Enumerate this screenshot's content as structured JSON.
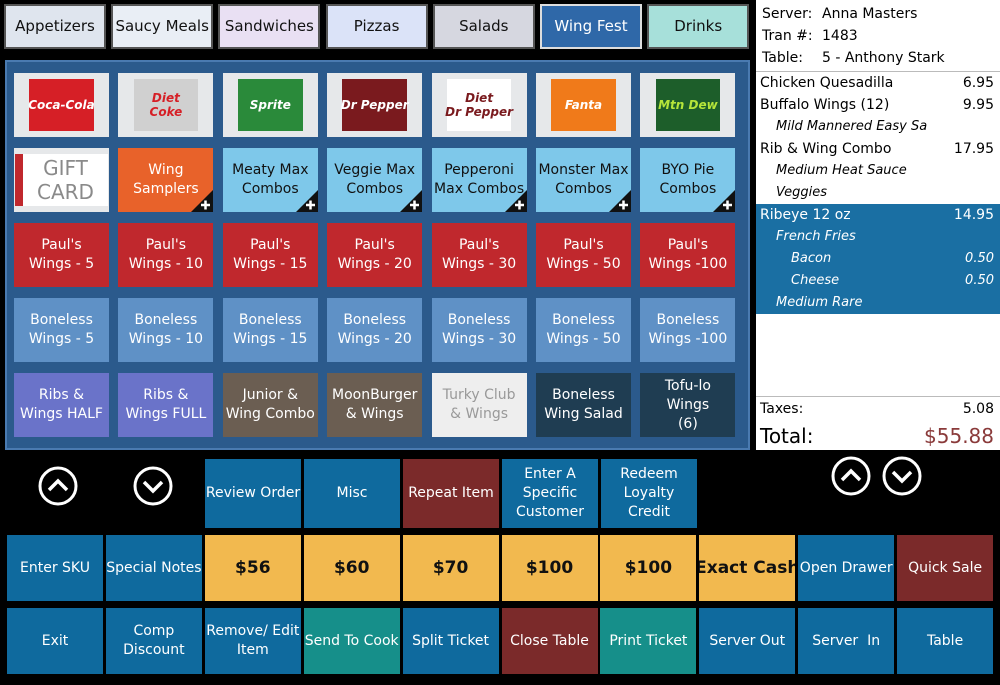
{
  "tabs": [
    {
      "label": "Appetizers",
      "color": "#dfe5ee"
    },
    {
      "label": "Saucy Meals",
      "color": "#e9eef5"
    },
    {
      "label": "Sandwiches",
      "color": "#e9e0f3"
    },
    {
      "label": "Pizzas",
      "color": "#dbe3f8"
    },
    {
      "label": "Salads",
      "color": "#d6d7e0"
    },
    {
      "label": "Wing Fest",
      "color": "#2f68a8"
    },
    {
      "label": "Drinks",
      "color": "#a7e0da"
    }
  ],
  "menu": [
    [
      {
        "logo": [
          "Coca-Cola"
        ],
        "color": "#d61f26",
        "text_color": "#ffffff"
      },
      {
        "logo": [
          "Diet",
          "Coke"
        ],
        "color": "#d0d0d0",
        "text_color": "#d61f26"
      },
      {
        "logo": [
          "Sprite"
        ],
        "color": "#2a8a3a",
        "text_color": "#ffffff"
      },
      {
        "logo": [
          "Dr Pepper"
        ],
        "color": "#7a1a1e",
        "text_color": "#ffffff"
      },
      {
        "logo": [
          "Diet",
          "Dr Pepper"
        ],
        "color": "#ffffff",
        "text_color": "#7a1a1e"
      },
      {
        "logo": [
          "Fanta"
        ],
        "color": "#f07a1a",
        "text_color": "#ffffff"
      },
      {
        "logo": [
          "Mtn Dew"
        ],
        "color": "#1d5e2a",
        "text_color": "#b6e63a"
      }
    ],
    [
      {
        "logo": [
          "GIFT",
          "CARD"
        ],
        "color": "#ffffff",
        "text_color": "#8a8a8a"
      },
      {
        "lines": [
          "Wing",
          "Samplers"
        ],
        "color": "#e8622a",
        "more": true
      },
      {
        "lines": [
          "Meaty Max",
          "Combos"
        ],
        "color": "#7ec8ea",
        "more": true
      },
      {
        "lines": [
          "Veggie Max",
          "Combos"
        ],
        "color": "#7ec8ea",
        "more": true
      },
      {
        "lines": [
          "Pepperoni",
          "Max Combos"
        ],
        "color": "#7ec8ea",
        "more": true
      },
      {
        "lines": [
          "Monster Max",
          "Combos"
        ],
        "color": "#7ec8ea",
        "more": true
      },
      {
        "lines": [
          "BYO Pie",
          "Combos"
        ],
        "color": "#7ec8ea",
        "more": true
      }
    ],
    [
      {
        "lines": [
          "Paul's",
          "Wings - 5"
        ],
        "color": "#c0282d"
      },
      {
        "lines": [
          "Paul's",
          "Wings - 10"
        ],
        "color": "#c0282d"
      },
      {
        "lines": [
          "Paul's",
          "Wings - 15"
        ],
        "color": "#c0282d"
      },
      {
        "lines": [
          "Paul's",
          "Wings - 20"
        ],
        "color": "#c0282d"
      },
      {
        "lines": [
          "Paul's",
          "Wings - 30"
        ],
        "color": "#c0282d"
      },
      {
        "lines": [
          "Paul's",
          "Wings - 50"
        ],
        "color": "#c0282d"
      },
      {
        "lines": [
          "Paul's",
          "Wings -100"
        ],
        "color": "#c0282d"
      }
    ],
    [
      {
        "lines": [
          "Boneless",
          "Wings - 5"
        ],
        "color": "#5f91c6"
      },
      {
        "lines": [
          "Boneless",
          "Wings - 10"
        ],
        "color": "#5f91c6"
      },
      {
        "lines": [
          "Boneless",
          "Wings - 15"
        ],
        "color": "#5f91c6"
      },
      {
        "lines": [
          "Boneless",
          "Wings - 20"
        ],
        "color": "#5f91c6"
      },
      {
        "lines": [
          "Boneless",
          "Wings - 30"
        ],
        "color": "#5f91c6"
      },
      {
        "lines": [
          "Boneless",
          "Wings - 50"
        ],
        "color": "#5f91c6"
      },
      {
        "lines": [
          "Boneless",
          "Wings -100"
        ],
        "color": "#5f91c6"
      }
    ],
    [
      {
        "lines": [
          "Ribs &",
          "Wings HALF"
        ],
        "color": "#6a73c9"
      },
      {
        "lines": [
          "Ribs &",
          "Wings FULL"
        ],
        "color": "#6a73c9"
      },
      {
        "lines": [
          "Junior &",
          "Wing Combo"
        ],
        "color": "#6b5e52"
      },
      {
        "lines": [
          "MoonBurger",
          "& Wings"
        ],
        "color": "#6b5e52"
      },
      {
        "lines": [
          "Turky Club",
          "& Wings"
        ],
        "color": "#eeeeee"
      },
      {
        "lines": [
          "Boneless",
          "Wing Salad"
        ],
        "color": "#1f3d52"
      },
      {
        "lines": [
          "Tofu-lo",
          "Wings",
          "(6)"
        ],
        "color": "#1f3d52"
      }
    ]
  ],
  "order": {
    "header": [
      {
        "label": "Server:",
        "value": "Anna Masters"
      },
      {
        "label": "Tran #:",
        "value": "1483"
      },
      {
        "label": "Table:",
        "value": "5 - Anthony Stark"
      }
    ],
    "items": [
      {
        "name": "Chicken Quesadilla",
        "price": "6.95",
        "modifiers": []
      },
      {
        "name": "Buffalo Wings (12)",
        "price": "9.95",
        "modifiers": [
          {
            "name": "Mild Mannered Easy Sa"
          }
        ]
      },
      {
        "name": "Rib & Wing Combo",
        "price": "17.95",
        "modifiers": [
          {
            "name": "Medium Heat Sauce"
          },
          {
            "name": "Veggies"
          }
        ]
      },
      {
        "name": "Ribeye 12 oz",
        "price": "14.95",
        "selected": true,
        "modifiers": [
          {
            "name": "French Fries",
            "options": [
              {
                "name": "Bacon",
                "price": "0.50"
              },
              {
                "name": "Cheese",
                "price": "0.50"
              }
            ]
          },
          {
            "name": "Medium Rare"
          }
        ]
      }
    ],
    "taxes": {
      "label": "Taxes:",
      "value": "5.08"
    },
    "total": {
      "label": "Total:",
      "value": "$55.88"
    }
  },
  "actions": [
    [
      {
        "lines": [
          "Review Order"
        ],
        "color": "#0f6a9e"
      },
      {
        "lines": [
          "Misc"
        ],
        "color": "#0f6a9e"
      },
      {
        "lines": [
          "Repeat Item"
        ],
        "color": "#7b2a2a"
      },
      {
        "lines": [
          "Enter A",
          "Specific",
          "Customer"
        ],
        "color": "#0f6a9e"
      },
      {
        "lines": [
          "Redeem",
          "Loyalty",
          "Credit"
        ],
        "color": "#0f6a9e"
      }
    ],
    [
      {
        "lines": [
          "Enter SKU"
        ],
        "color": "#0f6a9e"
      },
      {
        "lines": [
          "Special Notes"
        ],
        "color": "#0f6a9e"
      },
      {
        "lines": [
          "$56"
        ],
        "color": "#f2b94f"
      },
      {
        "lines": [
          "$60"
        ],
        "color": "#f2b94f"
      },
      {
        "lines": [
          "$70"
        ],
        "color": "#f2b94f"
      },
      {
        "lines": [
          "$100"
        ],
        "color": "#f2b94f"
      },
      {
        "lines": [
          "$100"
        ],
        "color": "#f2b94f"
      },
      {
        "lines": [
          "Exact Cash"
        ],
        "color": "#f2b94f"
      },
      {
        "lines": [
          "Open Drawer"
        ],
        "color": "#0f6a9e"
      },
      {
        "lines": [
          "Quick Sale"
        ],
        "color": "#7b2a2a"
      }
    ],
    [
      {
        "lines": [
          "Exit"
        ],
        "color": "#0f6a9e"
      },
      {
        "lines": [
          "Comp",
          "Discount"
        ],
        "color": "#0f6a9e"
      },
      {
        "lines": [
          "Remove/ Edit",
          "Item"
        ],
        "color": "#0f6a9e"
      },
      {
        "lines": [
          "Send To Cook"
        ],
        "color": "#168f8a"
      },
      {
        "lines": [
          "Split Ticket"
        ],
        "color": "#0f6a9e"
      },
      {
        "lines": [
          "Close Table"
        ],
        "color": "#7b2a2a"
      },
      {
        "lines": [
          "Print Ticket"
        ],
        "color": "#168f8a"
      },
      {
        "lines": [
          "Server Out"
        ],
        "color": "#0f6a9e"
      },
      {
        "lines": [
          "Server  In"
        ],
        "color": "#0f6a9e"
      },
      {
        "lines": [
          "Table"
        ],
        "color": "#0f6a9e"
      }
    ]
  ]
}
